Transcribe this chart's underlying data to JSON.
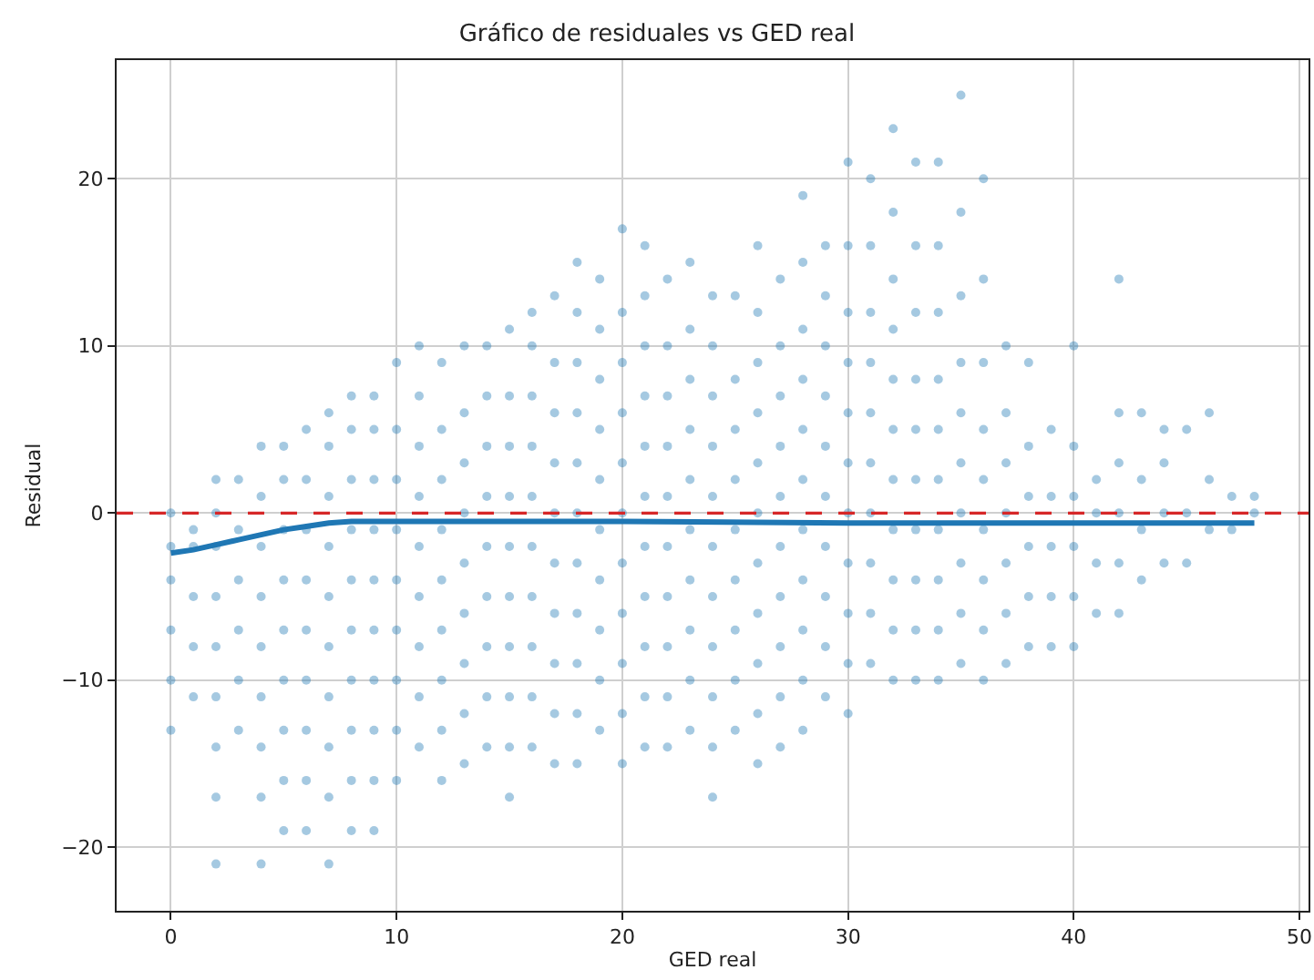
{
  "chart_data": {
    "type": "scatter",
    "title": "Gráfico de residuales vs GED real",
    "xlabel": "GED real",
    "ylabel": "Residual",
    "xlim": [
      -2.4,
      50.4
    ],
    "xticks": [
      0,
      10,
      20,
      30,
      40,
      50
    ],
    "ylim": [
      -23.8,
      27.1
    ],
    "yticks": [
      {
        "value": -20,
        "label": "−20"
      },
      {
        "value": -10,
        "label": "−10"
      },
      0,
      10,
      20
    ],
    "grid": true,
    "legend": false,
    "ref_lines": [
      {
        "axis": "y",
        "value": 0,
        "color": "#d62728",
        "line_style": "dashed"
      }
    ],
    "series": [
      {
        "color": "#1f77b4",
        "marker": "circle",
        "x": [
          0,
          0,
          0,
          0,
          0,
          0,
          1,
          1,
          1,
          1,
          1,
          2,
          2,
          2,
          2,
          2,
          2,
          2,
          2,
          2,
          3,
          3,
          3,
          3,
          3,
          3,
          4,
          4,
          4,
          4,
          4,
          4,
          4,
          4,
          4,
          5,
          5,
          5,
          5,
          5,
          5,
          5,
          5,
          5,
          6,
          6,
          6,
          6,
          6,
          6,
          6,
          6,
          6,
          7,
          7,
          7,
          7,
          7,
          7,
          7,
          7,
          7,
          7,
          8,
          8,
          8,
          8,
          8,
          8,
          8,
          8,
          8,
          8,
          9,
          9,
          9,
          9,
          9,
          9,
          9,
          9,
          9,
          9,
          10,
          10,
          10,
          10,
          10,
          10,
          10,
          10,
          10,
          11,
          11,
          11,
          11,
          11,
          11,
          11,
          11,
          11,
          12,
          12,
          12,
          12,
          12,
          12,
          12,
          12,
          12,
          13,
          13,
          13,
          13,
          13,
          13,
          13,
          13,
          13,
          14,
          14,
          14,
          14,
          14,
          14,
          14,
          14,
          14,
          15,
          15,
          15,
          15,
          15,
          15,
          15,
          15,
          15,
          15,
          16,
          16,
          16,
          16,
          16,
          16,
          16,
          16,
          16,
          16,
          17,
          17,
          17,
          17,
          17,
          17,
          17,
          17,
          17,
          17,
          18,
          18,
          18,
          18,
          18,
          18,
          18,
          18,
          18,
          18,
          18,
          19,
          19,
          19,
          19,
          19,
          19,
          19,
          19,
          19,
          19,
          20,
          20,
          20,
          20,
          20,
          20,
          20,
          20,
          20,
          20,
          20,
          21,
          21,
          21,
          21,
          21,
          21,
          21,
          21,
          21,
          21,
          21,
          22,
          22,
          22,
          22,
          22,
          22,
          22,
          22,
          22,
          22,
          23,
          23,
          23,
          23,
          23,
          23,
          23,
          23,
          23,
          23,
          24,
          24,
          24,
          24,
          24,
          24,
          24,
          24,
          24,
          24,
          24,
          25,
          25,
          25,
          25,
          25,
          25,
          25,
          25,
          25,
          26,
          26,
          26,
          26,
          26,
          26,
          26,
          26,
          26,
          26,
          26,
          27,
          27,
          27,
          27,
          27,
          27,
          27,
          27,
          27,
          27,
          28,
          28,
          28,
          28,
          28,
          28,
          28,
          28,
          28,
          28,
          28,
          29,
          29,
          29,
          29,
          29,
          29,
          29,
          29,
          29,
          29,
          30,
          30,
          30,
          30,
          30,
          30,
          30,
          30,
          30,
          30,
          30,
          31,
          31,
          31,
          31,
          31,
          31,
          31,
          31,
          31,
          31,
          32,
          32,
          32,
          32,
          32,
          32,
          32,
          32,
          32,
          32,
          32,
          33,
          33,
          33,
          33,
          33,
          33,
          33,
          33,
          33,
          33,
          34,
          34,
          34,
          34,
          34,
          34,
          34,
          34,
          34,
          34,
          35,
          35,
          35,
          35,
          35,
          35,
          35,
          35,
          35,
          35,
          36,
          36,
          36,
          36,
          36,
          36,
          36,
          36,
          36,
          37,
          37,
          37,
          37,
          37,
          37,
          37,
          38,
          38,
          38,
          38,
          38,
          38,
          39,
          39,
          39,
          39,
          39,
          40,
          40,
          40,
          40,
          40,
          40,
          41,
          41,
          41,
          41,
          42,
          42,
          42,
          42,
          42,
          42,
          43,
          43,
          43,
          43,
          44,
          44,
          44,
          44,
          45,
          45,
          45,
          46,
          46,
          46,
          47,
          47,
          48,
          48
        ],
        "values": [
          -13,
          -10,
          -7,
          -4,
          -2,
          0,
          -11,
          -8,
          -5,
          -2,
          -1,
          -21,
          -17,
          -14,
          -11,
          -8,
          -5,
          -2,
          0,
          2,
          -13,
          -10,
          -7,
          -4,
          -1,
          2,
          -21,
          -17,
          -14,
          -11,
          -8,
          -5,
          -2,
          1,
          4,
          -19,
          -16,
          -13,
          -10,
          -7,
          -4,
          -1,
          2,
          4,
          -19,
          -16,
          -13,
          -10,
          -7,
          -4,
          -1,
          2,
          5,
          -21,
          -17,
          -14,
          -11,
          -8,
          -5,
          -2,
          1,
          4,
          6,
          -19,
          -16,
          -13,
          -10,
          -7,
          -4,
          -1,
          2,
          5,
          7,
          -19,
          -16,
          -13,
          -10,
          -7,
          -4,
          -1,
          2,
          5,
          7,
          -16,
          -13,
          -10,
          -7,
          -4,
          -1,
          2,
          5,
          9,
          -14,
          -11,
          -8,
          -5,
          -2,
          1,
          4,
          7,
          10,
          -16,
          -13,
          -10,
          -7,
          -4,
          -1,
          2,
          5,
          9,
          -15,
          -12,
          -9,
          -6,
          -3,
          0,
          3,
          6,
          10,
          -14,
          -11,
          -8,
          -5,
          -2,
          1,
          4,
          7,
          10,
          -17,
          -14,
          -11,
          -8,
          -5,
          -2,
          1,
          4,
          7,
          11,
          -14,
          -11,
          -8,
          -5,
          -2,
          1,
          4,
          7,
          10,
          12,
          -15,
          -12,
          -9,
          -6,
          -3,
          0,
          3,
          6,
          9,
          13,
          -15,
          -12,
          -9,
          -6,
          -3,
          0,
          3,
          6,
          9,
          12,
          15,
          -13,
          -10,
          -7,
          -4,
          -1,
          2,
          5,
          8,
          11,
          14,
          -15,
          -12,
          -9,
          -6,
          -3,
          0,
          3,
          6,
          9,
          12,
          17,
          -14,
          -11,
          -8,
          -5,
          -2,
          1,
          4,
          7,
          10,
          13,
          16,
          -14,
          -11,
          -8,
          -5,
          -2,
          1,
          4,
          7,
          10,
          14,
          -13,
          -10,
          -7,
          -4,
          -1,
          2,
          5,
          8,
          11,
          15,
          -17,
          -14,
          -11,
          -8,
          -5,
          -2,
          1,
          4,
          7,
          10,
          13,
          -13,
          -10,
          -7,
          -4,
          -1,
          2,
          5,
          8,
          13,
          -15,
          -12,
          -9,
          -6,
          -3,
          0,
          3,
          6,
          9,
          12,
          16,
          -14,
          -11,
          -8,
          -5,
          -2,
          1,
          4,
          7,
          10,
          14,
          -13,
          -10,
          -7,
          -4,
          -1,
          2,
          5,
          8,
          11,
          15,
          19,
          -11,
          -8,
          -5,
          -2,
          1,
          4,
          7,
          10,
          13,
          16,
          -12,
          -9,
          -6,
          -3,
          0,
          3,
          6,
          9,
          12,
          16,
          21,
          -9,
          -6,
          -3,
          0,
          3,
          6,
          9,
          12,
          16,
          20,
          -10,
          -7,
          -4,
          -1,
          2,
          5,
          8,
          11,
          14,
          18,
          23,
          -10,
          -7,
          -4,
          -1,
          2,
          5,
          8,
          12,
          16,
          21,
          -10,
          -7,
          -4,
          -1,
          2,
          5,
          8,
          12,
          16,
          21,
          -9,
          -6,
          -3,
          0,
          3,
          6,
          9,
          13,
          18,
          25,
          -10,
          -7,
          -4,
          -1,
          2,
          5,
          9,
          14,
          20,
          -9,
          -6,
          -3,
          0,
          3,
          6,
          10,
          -8,
          -5,
          -2,
          1,
          4,
          9,
          -8,
          -5,
          -2,
          1,
          5,
          -8,
          -5,
          -2,
          1,
          4,
          10,
          -6,
          -3,
          0,
          2,
          -6,
          -3,
          0,
          3,
          6,
          14,
          -4,
          -1,
          2,
          6,
          -3,
          0,
          3,
          5,
          -3,
          0,
          5,
          -1,
          2,
          6,
          -1,
          1,
          0,
          1
        ]
      },
      {
        "type": "line",
        "color": "#1f77b4",
        "marker": "none",
        "line_style": "solid",
        "x": [
          0,
          1,
          2,
          3,
          4,
          5,
          6,
          7,
          8,
          10,
          15,
          20,
          30,
          40,
          48
        ],
        "values": [
          -2.4,
          -2.2,
          -1.9,
          -1.6,
          -1.3,
          -1.0,
          -0.8,
          -0.6,
          -0.5,
          -0.5,
          -0.5,
          -0.5,
          -0.6,
          -0.6,
          -0.6
        ]
      }
    ]
  }
}
